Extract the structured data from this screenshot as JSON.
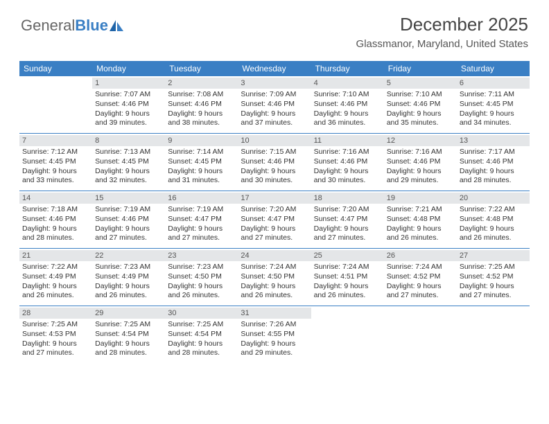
{
  "logo": {
    "part1": "General",
    "part2": "Blue"
  },
  "title": "December 2025",
  "subtitle": "Glassmanor, Maryland, United States",
  "colors": {
    "header_bg": "#3a7fc4",
    "daynum_bg": "#e4e6e8",
    "row_border": "#3a7fc4",
    "text": "#333333",
    "page_bg": "#ffffff"
  },
  "day_headers": [
    "Sunday",
    "Monday",
    "Tuesday",
    "Wednesday",
    "Thursday",
    "Friday",
    "Saturday"
  ],
  "weeks": [
    [
      {
        "n": "",
        "sr": "",
        "ss": "",
        "dl1": "",
        "dl2": ""
      },
      {
        "n": "1",
        "sr": "Sunrise: 7:07 AM",
        "ss": "Sunset: 4:46 PM",
        "dl1": "Daylight: 9 hours",
        "dl2": "and 39 minutes."
      },
      {
        "n": "2",
        "sr": "Sunrise: 7:08 AM",
        "ss": "Sunset: 4:46 PM",
        "dl1": "Daylight: 9 hours",
        "dl2": "and 38 minutes."
      },
      {
        "n": "3",
        "sr": "Sunrise: 7:09 AM",
        "ss": "Sunset: 4:46 PM",
        "dl1": "Daylight: 9 hours",
        "dl2": "and 37 minutes."
      },
      {
        "n": "4",
        "sr": "Sunrise: 7:10 AM",
        "ss": "Sunset: 4:46 PM",
        "dl1": "Daylight: 9 hours",
        "dl2": "and 36 minutes."
      },
      {
        "n": "5",
        "sr": "Sunrise: 7:10 AM",
        "ss": "Sunset: 4:46 PM",
        "dl1": "Daylight: 9 hours",
        "dl2": "and 35 minutes."
      },
      {
        "n": "6",
        "sr": "Sunrise: 7:11 AM",
        "ss": "Sunset: 4:45 PM",
        "dl1": "Daylight: 9 hours",
        "dl2": "and 34 minutes."
      }
    ],
    [
      {
        "n": "7",
        "sr": "Sunrise: 7:12 AM",
        "ss": "Sunset: 4:45 PM",
        "dl1": "Daylight: 9 hours",
        "dl2": "and 33 minutes."
      },
      {
        "n": "8",
        "sr": "Sunrise: 7:13 AM",
        "ss": "Sunset: 4:45 PM",
        "dl1": "Daylight: 9 hours",
        "dl2": "and 32 minutes."
      },
      {
        "n": "9",
        "sr": "Sunrise: 7:14 AM",
        "ss": "Sunset: 4:45 PM",
        "dl1": "Daylight: 9 hours",
        "dl2": "and 31 minutes."
      },
      {
        "n": "10",
        "sr": "Sunrise: 7:15 AM",
        "ss": "Sunset: 4:46 PM",
        "dl1": "Daylight: 9 hours",
        "dl2": "and 30 minutes."
      },
      {
        "n": "11",
        "sr": "Sunrise: 7:16 AM",
        "ss": "Sunset: 4:46 PM",
        "dl1": "Daylight: 9 hours",
        "dl2": "and 30 minutes."
      },
      {
        "n": "12",
        "sr": "Sunrise: 7:16 AM",
        "ss": "Sunset: 4:46 PM",
        "dl1": "Daylight: 9 hours",
        "dl2": "and 29 minutes."
      },
      {
        "n": "13",
        "sr": "Sunrise: 7:17 AM",
        "ss": "Sunset: 4:46 PM",
        "dl1": "Daylight: 9 hours",
        "dl2": "and 28 minutes."
      }
    ],
    [
      {
        "n": "14",
        "sr": "Sunrise: 7:18 AM",
        "ss": "Sunset: 4:46 PM",
        "dl1": "Daylight: 9 hours",
        "dl2": "and 28 minutes."
      },
      {
        "n": "15",
        "sr": "Sunrise: 7:19 AM",
        "ss": "Sunset: 4:46 PM",
        "dl1": "Daylight: 9 hours",
        "dl2": "and 27 minutes."
      },
      {
        "n": "16",
        "sr": "Sunrise: 7:19 AM",
        "ss": "Sunset: 4:47 PM",
        "dl1": "Daylight: 9 hours",
        "dl2": "and 27 minutes."
      },
      {
        "n": "17",
        "sr": "Sunrise: 7:20 AM",
        "ss": "Sunset: 4:47 PM",
        "dl1": "Daylight: 9 hours",
        "dl2": "and 27 minutes."
      },
      {
        "n": "18",
        "sr": "Sunrise: 7:20 AM",
        "ss": "Sunset: 4:47 PM",
        "dl1": "Daylight: 9 hours",
        "dl2": "and 27 minutes."
      },
      {
        "n": "19",
        "sr": "Sunrise: 7:21 AM",
        "ss": "Sunset: 4:48 PM",
        "dl1": "Daylight: 9 hours",
        "dl2": "and 26 minutes."
      },
      {
        "n": "20",
        "sr": "Sunrise: 7:22 AM",
        "ss": "Sunset: 4:48 PM",
        "dl1": "Daylight: 9 hours",
        "dl2": "and 26 minutes."
      }
    ],
    [
      {
        "n": "21",
        "sr": "Sunrise: 7:22 AM",
        "ss": "Sunset: 4:49 PM",
        "dl1": "Daylight: 9 hours",
        "dl2": "and 26 minutes."
      },
      {
        "n": "22",
        "sr": "Sunrise: 7:23 AM",
        "ss": "Sunset: 4:49 PM",
        "dl1": "Daylight: 9 hours",
        "dl2": "and 26 minutes."
      },
      {
        "n": "23",
        "sr": "Sunrise: 7:23 AM",
        "ss": "Sunset: 4:50 PM",
        "dl1": "Daylight: 9 hours",
        "dl2": "and 26 minutes."
      },
      {
        "n": "24",
        "sr": "Sunrise: 7:24 AM",
        "ss": "Sunset: 4:50 PM",
        "dl1": "Daylight: 9 hours",
        "dl2": "and 26 minutes."
      },
      {
        "n": "25",
        "sr": "Sunrise: 7:24 AM",
        "ss": "Sunset: 4:51 PM",
        "dl1": "Daylight: 9 hours",
        "dl2": "and 26 minutes."
      },
      {
        "n": "26",
        "sr": "Sunrise: 7:24 AM",
        "ss": "Sunset: 4:52 PM",
        "dl1": "Daylight: 9 hours",
        "dl2": "and 27 minutes."
      },
      {
        "n": "27",
        "sr": "Sunrise: 7:25 AM",
        "ss": "Sunset: 4:52 PM",
        "dl1": "Daylight: 9 hours",
        "dl2": "and 27 minutes."
      }
    ],
    [
      {
        "n": "28",
        "sr": "Sunrise: 7:25 AM",
        "ss": "Sunset: 4:53 PM",
        "dl1": "Daylight: 9 hours",
        "dl2": "and 27 minutes."
      },
      {
        "n": "29",
        "sr": "Sunrise: 7:25 AM",
        "ss": "Sunset: 4:54 PM",
        "dl1": "Daylight: 9 hours",
        "dl2": "and 28 minutes."
      },
      {
        "n": "30",
        "sr": "Sunrise: 7:25 AM",
        "ss": "Sunset: 4:54 PM",
        "dl1": "Daylight: 9 hours",
        "dl2": "and 28 minutes."
      },
      {
        "n": "31",
        "sr": "Sunrise: 7:26 AM",
        "ss": "Sunset: 4:55 PM",
        "dl1": "Daylight: 9 hours",
        "dl2": "and 29 minutes."
      },
      {
        "n": "",
        "sr": "",
        "ss": "",
        "dl1": "",
        "dl2": ""
      },
      {
        "n": "",
        "sr": "",
        "ss": "",
        "dl1": "",
        "dl2": ""
      },
      {
        "n": "",
        "sr": "",
        "ss": "",
        "dl1": "",
        "dl2": ""
      }
    ]
  ]
}
